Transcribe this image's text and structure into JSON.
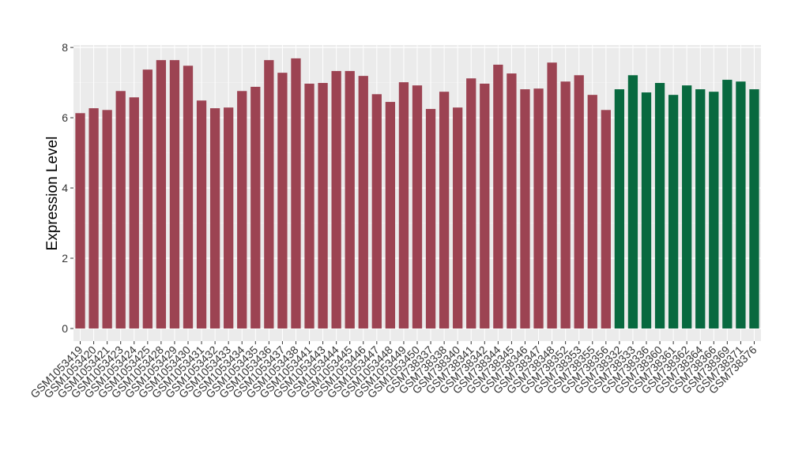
{
  "chart_data": {
    "type": "bar",
    "y_label": "Expression Level",
    "categories": [
      "GSM1053419",
      "GSM1053420",
      "GSM1053421",
      "GSM1053423",
      "GSM1053424",
      "GSM1053425",
      "GSM1053428",
      "GSM1053429",
      "GSM1053430",
      "GSM1053431",
      "GSM1053432",
      "GSM1053433",
      "GSM1053434",
      "GSM1053435",
      "GSM1053436",
      "GSM1053437",
      "GSM1053438",
      "GSM1053441",
      "GSM1053443",
      "GSM1053444",
      "GSM1053445",
      "GSM1053446",
      "GSM1053447",
      "GSM1053448",
      "GSM1053449",
      "GSM1053450",
      "GSM738337",
      "GSM738338",
      "GSM738340",
      "GSM738341",
      "GSM738342",
      "GSM738344",
      "GSM738345",
      "GSM738346",
      "GSM738347",
      "GSM738348",
      "GSM738352",
      "GSM738353",
      "GSM738355",
      "GSM738356",
      "GSM738332",
      "GSM738333",
      "GSM738336",
      "GSM738360",
      "GSM738361",
      "GSM738362",
      "GSM738364",
      "GSM738366",
      "GSM738369",
      "GSM738371",
      "GSM738376"
    ],
    "series": [
      {
        "color": "#9c4352",
        "values": [
          6.13,
          6.27,
          6.22,
          6.76,
          6.58,
          7.37,
          7.64,
          7.64,
          7.48,
          6.49,
          6.27,
          6.29,
          6.76,
          6.88,
          7.64,
          7.28,
          7.69,
          6.97,
          6.99,
          7.33,
          7.33,
          7.19,
          6.67,
          6.45,
          7.01,
          6.92,
          6.25,
          6.74,
          6.29,
          7.12,
          6.97,
          7.51,
          7.26,
          6.81,
          6.83,
          7.57,
          7.03,
          7.21,
          6.65,
          6.22,
          null,
          null,
          null,
          null,
          null,
          null,
          null,
          null,
          null,
          null,
          null
        ]
      },
      {
        "color": "#08693f",
        "values": [
          null,
          null,
          null,
          null,
          null,
          null,
          null,
          null,
          null,
          null,
          null,
          null,
          null,
          null,
          null,
          null,
          null,
          null,
          null,
          null,
          null,
          null,
          null,
          null,
          null,
          null,
          null,
          null,
          null,
          null,
          null,
          null,
          null,
          null,
          null,
          null,
          null,
          null,
          null,
          null,
          6.81,
          7.21,
          6.72,
          6.99,
          6.65,
          6.92,
          6.81,
          6.74,
          7.08,
          7.03,
          6.81
        ]
      }
    ],
    "ylim": [
      -0.36,
      8.07
    ],
    "yticks": [
      0,
      2,
      4,
      6,
      8
    ],
    "grid": true
  }
}
